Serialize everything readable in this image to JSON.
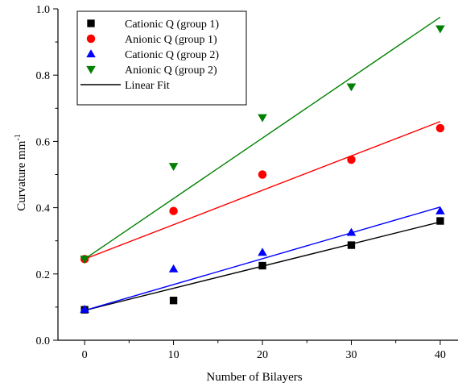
{
  "chart_data": {
    "type": "scatter",
    "title": "",
    "xlabel": "Number of Bilayers",
    "ylabel": "Curvature mm",
    "ylabel_superscript": "-1",
    "xlim": [
      -3,
      42
    ],
    "ylim": [
      0.0,
      1.0
    ],
    "x_ticks": [
      0,
      10,
      20,
      30,
      40
    ],
    "y_ticks": [
      0.0,
      0.2,
      0.4,
      0.6,
      0.8,
      1.0
    ],
    "x_tick_labels": [
      "0",
      "10",
      "20",
      "30",
      "40"
    ],
    "y_tick_labels": [
      "0.0",
      "0.2",
      "0.4",
      "0.6",
      "0.8",
      "1.0"
    ],
    "grid": false,
    "legend_position": "top-left",
    "series": [
      {
        "name": "Cationic Q (group 1)",
        "marker": "square",
        "color": "#000000",
        "x": [
          0,
          10,
          20,
          30,
          40
        ],
        "y": [
          0.092,
          0.12,
          0.225,
          0.287,
          0.36
        ],
        "fit": [
          0.09,
          0.357
        ]
      },
      {
        "name": "Anionic Q (group 1)",
        "marker": "circle",
        "color": "#ff0000",
        "x": [
          0,
          10,
          20,
          30,
          40
        ],
        "y": [
          0.245,
          0.39,
          0.5,
          0.545,
          0.64
        ],
        "fit": [
          0.245,
          0.66
        ]
      },
      {
        "name": "Cationic Q (group 2)",
        "marker": "triangle-up",
        "color": "#0000ff",
        "x": [
          0,
          10,
          20,
          30,
          40
        ],
        "y": [
          0.093,
          0.215,
          0.265,
          0.325,
          0.39
        ],
        "fit": [
          0.09,
          0.402
        ]
      },
      {
        "name": "Anionic Q (group 2)",
        "marker": "triangle-down",
        "color": "#008000",
        "x": [
          0,
          10,
          20,
          30,
          40
        ],
        "y": [
          0.245,
          0.525,
          0.672,
          0.765,
          0.94
        ],
        "fit": [
          0.245,
          0.975
        ]
      }
    ],
    "fit_legend_label": "Linear Fit"
  }
}
